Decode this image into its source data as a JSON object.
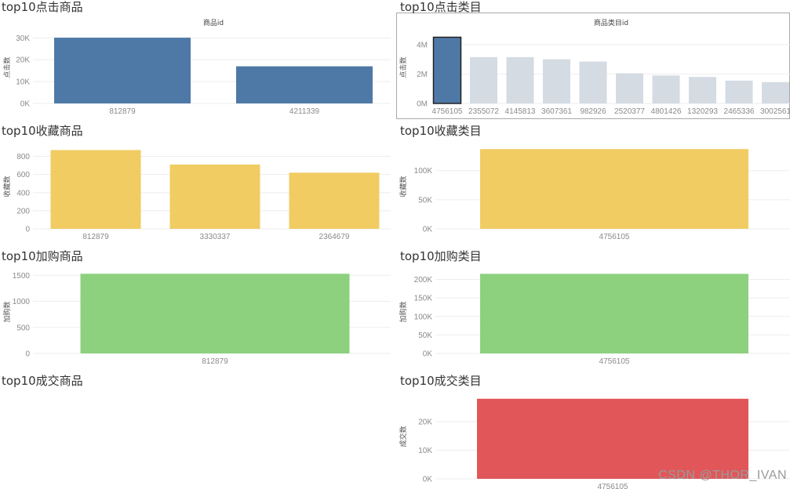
{
  "chart_data": [
    {
      "id": "c1",
      "type": "bar",
      "title": "top10点击商品",
      "header": "商品id",
      "xlabel": "",
      "ylabel": "点击数",
      "categories": [
        "812879",
        "4211339"
      ],
      "values": [
        30100,
        17000
      ],
      "ylim": [
        0,
        33000
      ],
      "yticks": [
        0,
        10000,
        20000,
        30000
      ],
      "ytick_labels": [
        "0K",
        "10K",
        "20K",
        "30K"
      ],
      "color": "#4e79a7",
      "grid": true
    },
    {
      "id": "c2",
      "type": "bar",
      "title": "top10点击类目",
      "header": "商品类目id",
      "xlabel": "",
      "ylabel": "点击数",
      "categories": [
        "4756105",
        "2355072",
        "4145813",
        "3607361",
        "982926",
        "2520377",
        "4801426",
        "1320293",
        "2465336",
        "3002561"
      ],
      "values": [
        4500000,
        3150000,
        3150000,
        3000000,
        2850000,
        2050000,
        1900000,
        1800000,
        1550000,
        1450000
      ],
      "ylim": [
        0,
        4900000
      ],
      "yticks": [
        0,
        2000000,
        4000000
      ],
      "ytick_labels": [
        "0M",
        "2M",
        "4M"
      ],
      "color": "#d4dbe3",
      "highlight_color": "#4e79a7",
      "highlight_index": 0,
      "grid": true
    },
    {
      "id": "c3",
      "type": "bar",
      "title": "top10收藏商品",
      "xlabel": "",
      "ylabel": "收藏数",
      "categories": [
        "812879",
        "3330337",
        "2364679"
      ],
      "values": [
        870,
        710,
        620
      ],
      "ylim": [
        0,
        900
      ],
      "yticks": [
        0,
        200,
        400,
        600,
        800
      ],
      "ytick_labels": [
        "0",
        "200",
        "400",
        "600",
        "800"
      ],
      "color": "#f0cc63",
      "grid": true
    },
    {
      "id": "c4",
      "type": "bar",
      "title": "top10收藏类目",
      "xlabel": "",
      "ylabel": "收藏数",
      "categories": [
        "4756105"
      ],
      "values": [
        137000
      ],
      "ylim": [
        0,
        140000
      ],
      "yticks": [
        0,
        50000,
        100000
      ],
      "ytick_labels": [
        "0K",
        "50K",
        "100K"
      ],
      "color": "#f0cc63",
      "grid": true
    },
    {
      "id": "c5",
      "type": "bar",
      "title": "top10加购商品",
      "xlabel": "",
      "ylabel": "加购数",
      "categories": [
        "812879"
      ],
      "values": [
        1530
      ],
      "ylim": [
        0,
        1550
      ],
      "yticks": [
        0,
        500,
        1000,
        1500
      ],
      "ytick_labels": [
        "0",
        "500",
        "1000",
        "1500"
      ],
      "color": "#8dd17e",
      "grid": true
    },
    {
      "id": "c6",
      "type": "bar",
      "title": "top10加购类目",
      "xlabel": "",
      "ylabel": "加购数",
      "categories": [
        "4756105"
      ],
      "values": [
        215000
      ],
      "ylim": [
        0,
        218000
      ],
      "yticks": [
        0,
        50000,
        100000,
        150000,
        200000
      ],
      "ytick_labels": [
        "0K",
        "50K",
        "100K",
        "150K",
        "200K"
      ],
      "color": "#8dd17e",
      "grid": true
    },
    {
      "id": "c7",
      "type": "bar",
      "title": "top10成交商品",
      "categories": [],
      "values": []
    },
    {
      "id": "c8",
      "type": "bar",
      "title": "top10成交类目",
      "xlabel": "",
      "ylabel": "成交数",
      "categories": [
        "4756105"
      ],
      "values": [
        28000
      ],
      "ylim": [
        0,
        28500
      ],
      "yticks": [
        0,
        10000,
        20000
      ],
      "ytick_labels": [
        "0K",
        "10K",
        "20K"
      ],
      "color": "#e15759",
      "grid": true
    }
  ],
  "watermark": "CSDN @THOR_IVAN"
}
